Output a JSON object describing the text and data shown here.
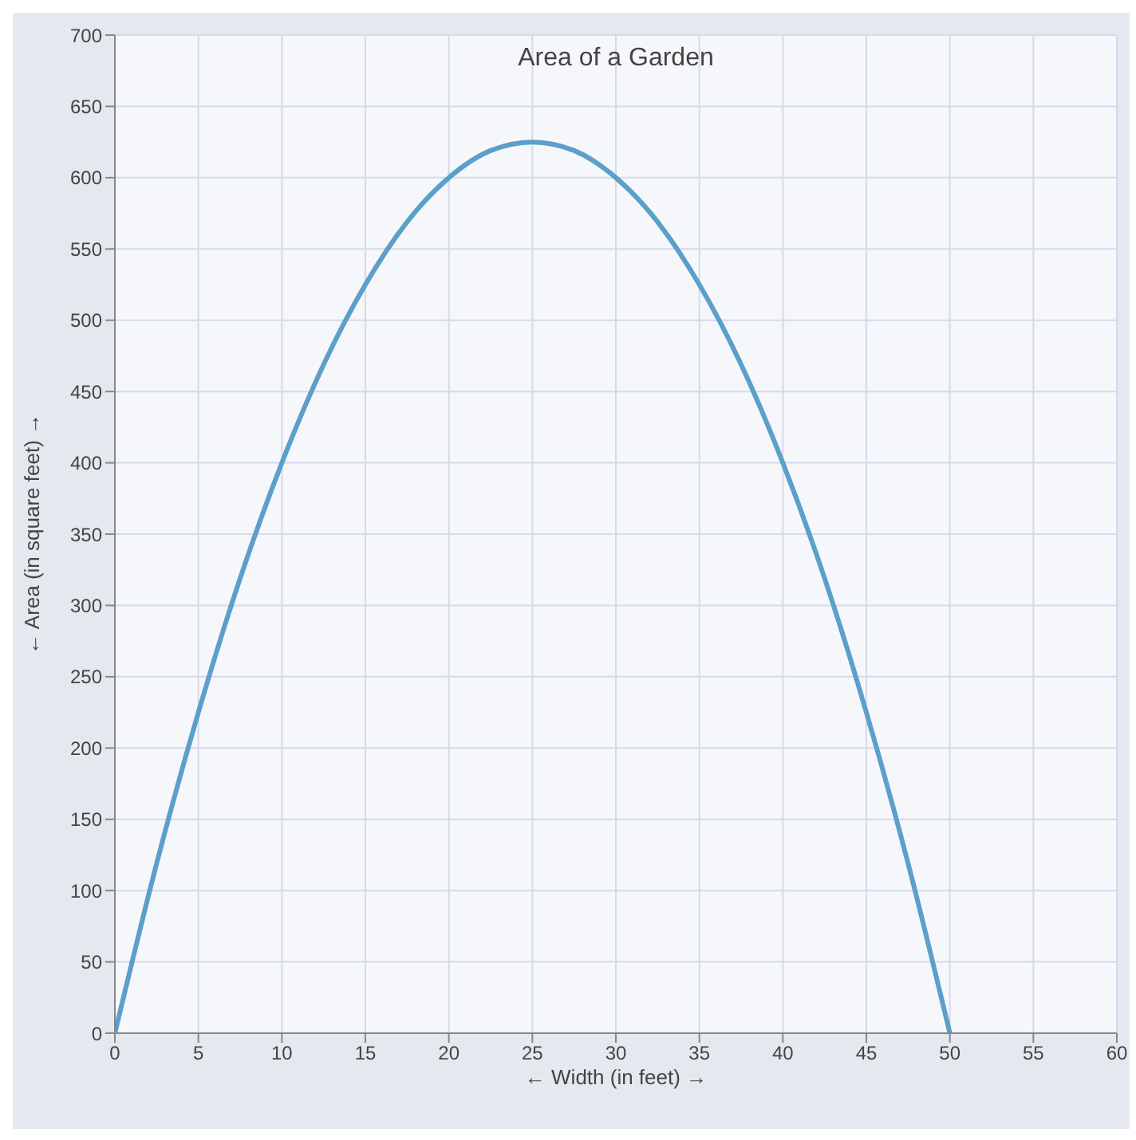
{
  "chart_data": {
    "type": "line",
    "title": "Area of a Garden",
    "xlabel": "← Width (in feet) →",
    "ylabel": "← Area (in square feet) →",
    "x": [
      0,
      2.5,
      5,
      7.5,
      10,
      12.5,
      15,
      17.5,
      20,
      22.5,
      25,
      27.5,
      30,
      32.5,
      35,
      37.5,
      40,
      42.5,
      45,
      47.5,
      50
    ],
    "series": [
      {
        "color": "#5b9fca",
        "values": [
          0,
          119,
          225,
          319,
          400,
          469,
          525,
          569,
          600,
          619,
          625,
          619,
          600,
          569,
          525,
          469,
          400,
          319,
          225,
          119,
          0
        ]
      }
    ],
    "xlim": [
      0,
      60
    ],
    "xticks": [
      0,
      5,
      10,
      15,
      20,
      25,
      30,
      35,
      40,
      45,
      50,
      55,
      60
    ],
    "ylim": [
      0,
      700
    ],
    "yticks": [
      0,
      50,
      100,
      150,
      200,
      250,
      300,
      350,
      400,
      450,
      500,
      550,
      600,
      650,
      700
    ],
    "grid": true,
    "legend": false,
    "marker": "none",
    "line_style": "solid"
  }
}
